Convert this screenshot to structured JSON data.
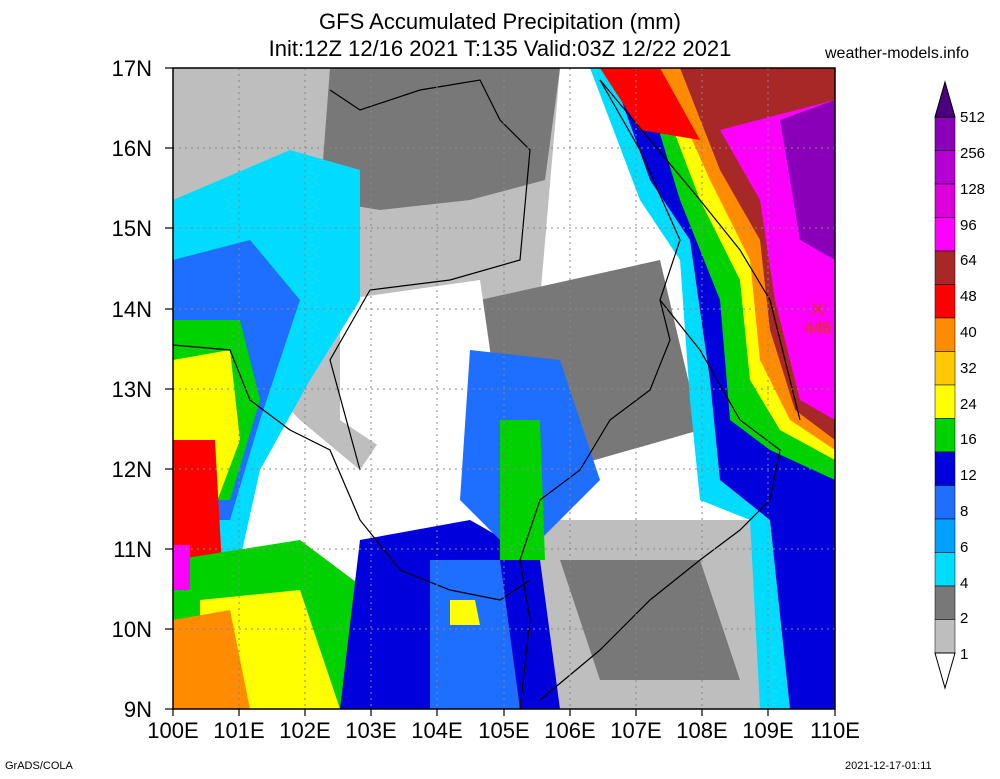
{
  "title": {
    "line1": "GFS Accumulated Precipitation (mm)",
    "line2": "Init:12Z 12/16 2021 T:135 Valid:03Z 12/22 2021"
  },
  "site": "weather-models.info",
  "axes": {
    "lat_labels": [
      "17N",
      "16N",
      "15N",
      "14N",
      "13N",
      "12N",
      "11N",
      "10N",
      "9N"
    ],
    "lon_labels": [
      "100E",
      "101E",
      "102E",
      "103E",
      "104E",
      "105E",
      "106E",
      "107E",
      "108E",
      "109E",
      "110E"
    ],
    "lat_range": [
      9,
      17
    ],
    "lon_range": [
      100,
      110
    ]
  },
  "max_marker": {
    "value": "446",
    "lon": 109.75,
    "lat": 14.0,
    "symbol": "✕"
  },
  "colorbar": {
    "labels": [
      "512",
      "256",
      "128",
      "96",
      "64",
      "48",
      "40",
      "32",
      "24",
      "16",
      "12",
      "8",
      "6",
      "4",
      "2",
      "1"
    ],
    "colors": [
      "#8a00b8",
      "#b400d2",
      "#dc00dc",
      "#ff00ff",
      "#a82828",
      "#ff0000",
      "#ff8c00",
      "#ffc800",
      "#ffff00",
      "#00d200",
      "#0000dc",
      "#1e6eff",
      "#00a0ff",
      "#00dcff",
      "#787878",
      "#bebebe"
    ],
    "top_arrow_color": "#4b0082"
  },
  "footer": {
    "left": "GrADS/COLA",
    "right": "2021-12-17-01:11"
  }
}
